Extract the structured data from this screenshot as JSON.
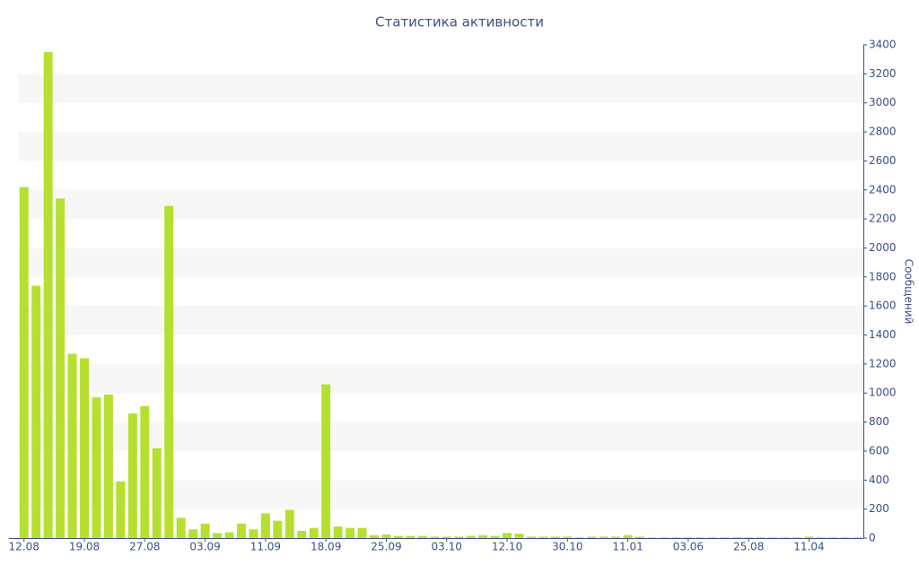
{
  "chart_data": {
    "type": "bar",
    "title": "Статистика активности",
    "ylabel": "Сообщений",
    "color": "#b5e02f",
    "grid": "bands",
    "y_axis_side": "right",
    "categories": [
      "12.08",
      null,
      null,
      null,
      null,
      "19.08",
      null,
      null,
      null,
      null,
      "27.08",
      null,
      null,
      null,
      null,
      "03.09",
      null,
      null,
      null,
      null,
      "11.09",
      null,
      null,
      null,
      null,
      "18.09",
      null,
      null,
      null,
      null,
      "25.09",
      null,
      null,
      null,
      null,
      "03.10",
      null,
      null,
      null,
      null,
      "12.10",
      null,
      null,
      null,
      null,
      "30.10",
      null,
      null,
      null,
      null,
      "11.01",
      null,
      null,
      null,
      null,
      "03.06",
      null,
      null,
      null,
      null,
      "25.08",
      null,
      null,
      null,
      null,
      "11.04",
      null,
      null,
      null,
      null
    ],
    "values": [
      2420,
      1740,
      3350,
      2340,
      1270,
      1240,
      970,
      990,
      390,
      860,
      910,
      620,
      2290,
      140,
      60,
      100,
      35,
      40,
      100,
      60,
      170,
      120,
      195,
      50,
      70,
      1060,
      80,
      70,
      70,
      20,
      25,
      15,
      15,
      15,
      10,
      10,
      10,
      15,
      20,
      15,
      35,
      30,
      10,
      10,
      10,
      10,
      5,
      10,
      10,
      10,
      20,
      10,
      5,
      5,
      5,
      5,
      5,
      5,
      5,
      5,
      5,
      5,
      5,
      5,
      5,
      10,
      5,
      5,
      5,
      5
    ],
    "ylim": [
      0,
      3400
    ],
    "yticks": [
      0,
      200,
      400,
      600,
      800,
      1000,
      1200,
      1400,
      1600,
      1800,
      2000,
      2200,
      2400,
      2600,
      2800,
      3000,
      3200,
      3400
    ]
  }
}
